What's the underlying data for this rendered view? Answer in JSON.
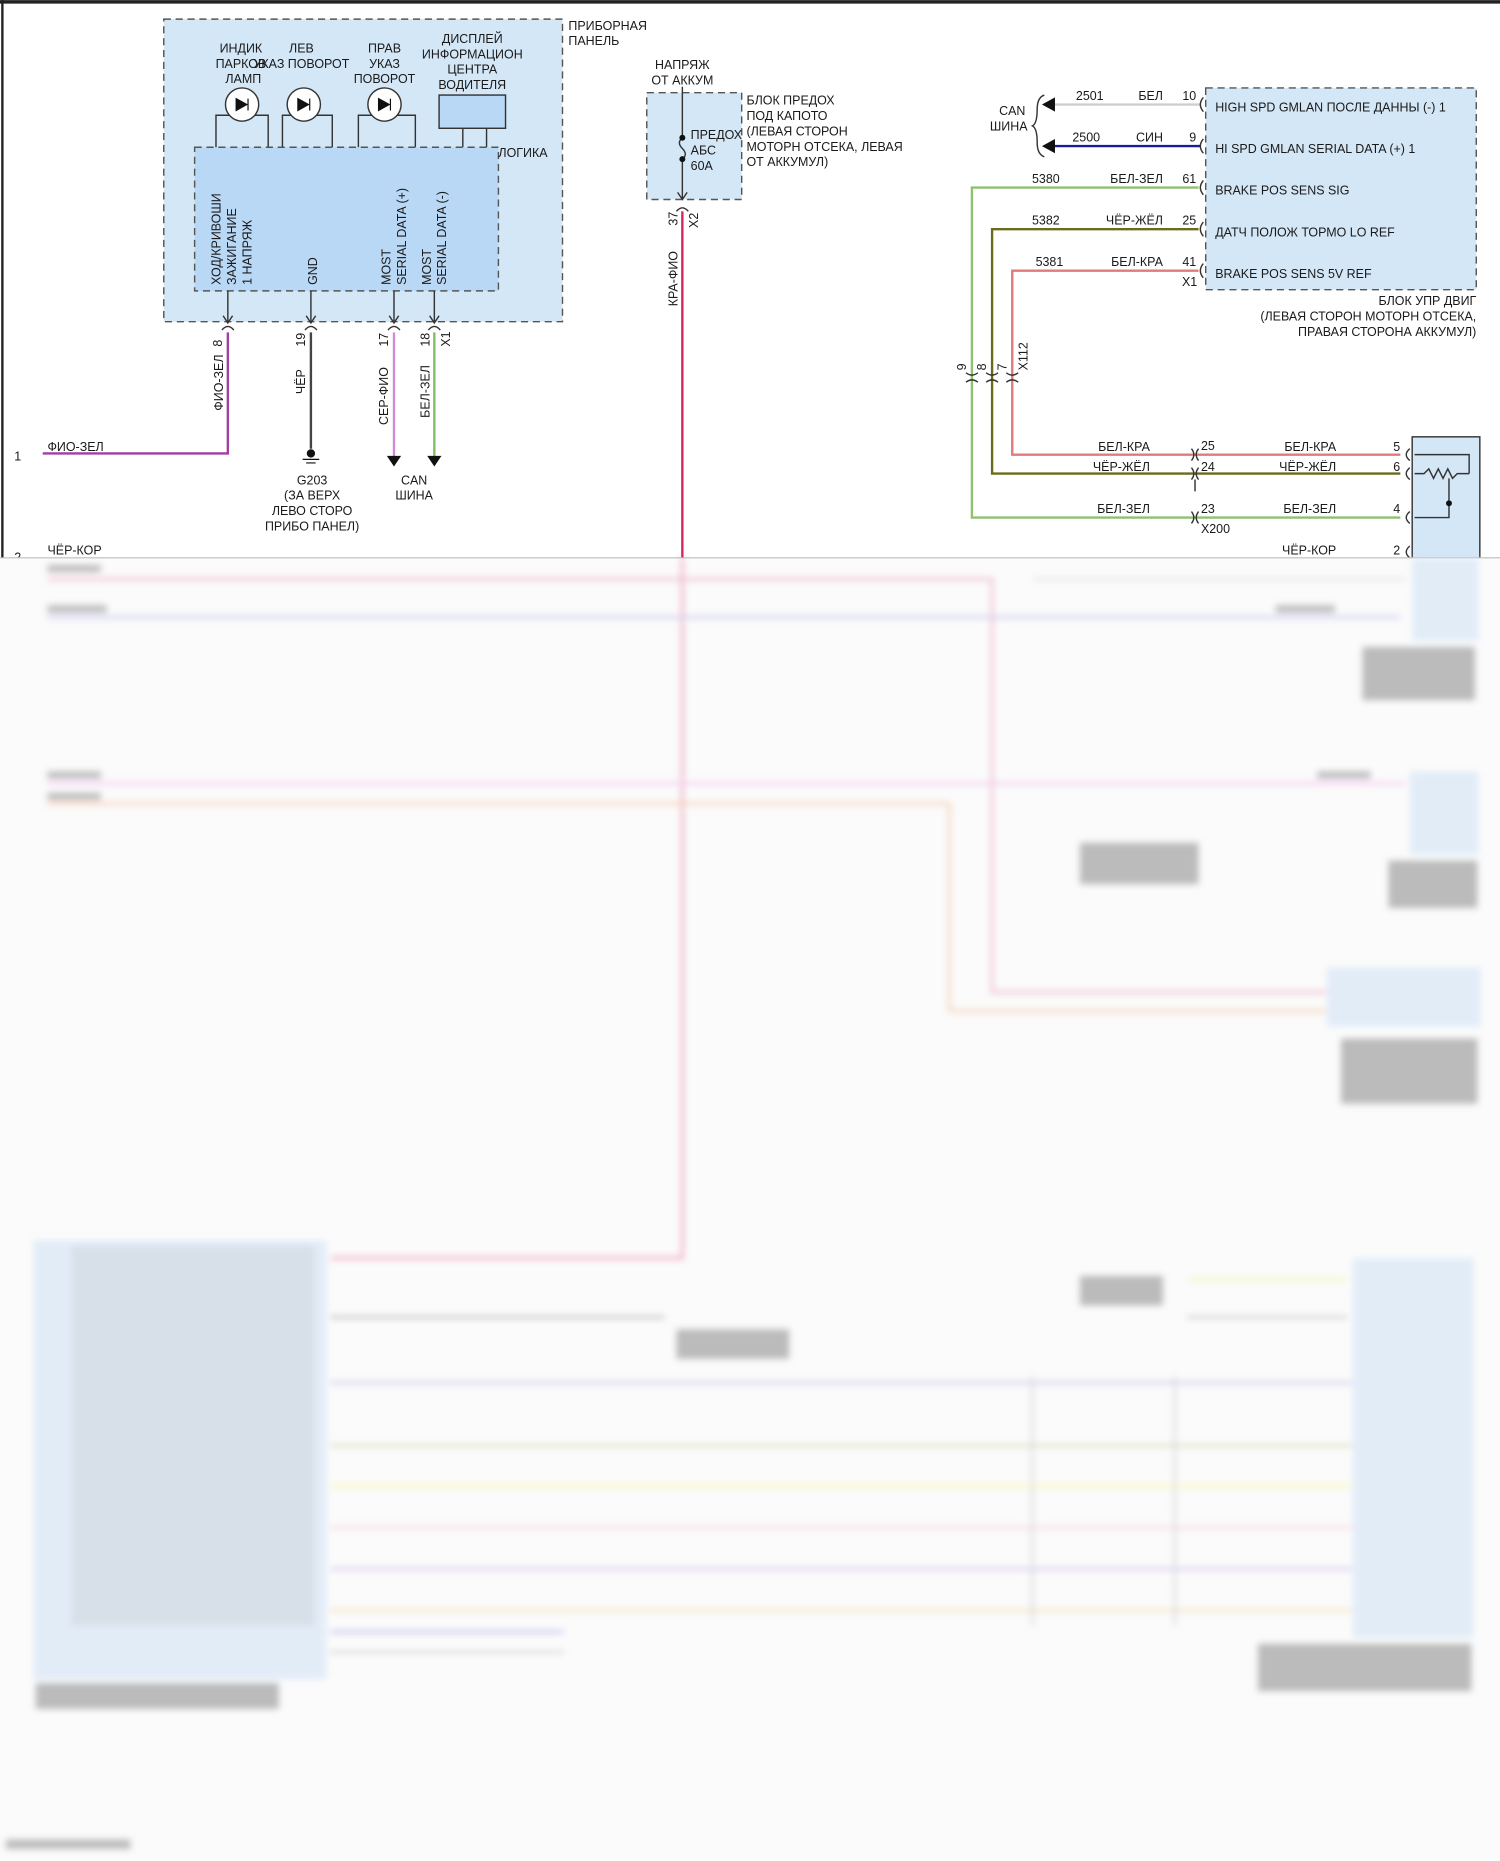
{
  "instrument_panel": {
    "title": [
      "ПРИБОРНАЯ",
      "ПАНЕЛЬ"
    ],
    "lamp_park": [
      "ИНДИК",
      "ПАРКОВ",
      "ЛАМП"
    ],
    "lamp_left": [
      "ЛЕВ",
      "УКАЗ ПОВОРОТ"
    ],
    "lamp_right": [
      "ПРАВ",
      "УКАЗ",
      "ПОВОРОТ"
    ],
    "display": [
      "ДИСПЛЕЙ",
      "ИНФОРМАЦИОН",
      "ЦЕНТРА",
      "ВОДИТЕЛЯ"
    ],
    "logic": "ЛОГИКА",
    "pins": [
      {
        "label": [
          "ХОД/КРИВОШИ",
          "ЗАЖИГАНИЕ",
          "1 НАПРЯЖ"
        ],
        "num": "8",
        "wire": "ФИО-ЗЕЛ"
      },
      {
        "label": [
          "GND"
        ],
        "num": "19",
        "wire": "ЧЁР"
      },
      {
        "label": [
          "MOST",
          "SERIAL DATA (+)"
        ],
        "num": "17",
        "wire": "СЕР-ФИО"
      },
      {
        "label": [
          "MOST",
          "SERIAL DATA (-)"
        ],
        "num": "18",
        "wire": "БЕЛ-ЗЕЛ"
      }
    ],
    "connector": "X1",
    "ground": [
      "G203",
      "(ЗА ВЕРХ",
      "ЛЕВО СТОРО",
      "ПРИБО ПАНЕЛ)"
    ],
    "can_bus": [
      "CAN",
      "ШИНА"
    ]
  },
  "left_rows": [
    {
      "num": "1",
      "wire": "ФИО-ЗЕЛ"
    },
    {
      "num": "2",
      "wire": "ЧЁР-КОР"
    }
  ],
  "fuse_block": {
    "supply": [
      "НАПРЯЖ",
      "ОТ АККУМ"
    ],
    "fuse": [
      "ПРЕДОХ",
      "АБС",
      "60А"
    ],
    "title": [
      "БЛОК ПРЕДОХ",
      "ПОД КАПОТО",
      "(ЛЕВАЯ СТОРОН",
      "МОТОРН ОТСЕКА, ЛЕВАЯ",
      "ОТ АККУМУЛ)"
    ],
    "pin": "37",
    "connector": "X2",
    "wire": "КРА-ФИО"
  },
  "ecm": {
    "can_bus": [
      "CAN",
      "ШИНА"
    ],
    "rows": [
      {
        "circuit": "2501",
        "wire": "БЕЛ",
        "pin": "10",
        "label": "HIGH SPD GMLAN ПОСЛЕ ДАННЫ (-) 1",
        "color": "#cfcfcf"
      },
      {
        "circuit": "2500",
        "wire": "СИН",
        "pin": "9",
        "label": "HI SPD GMLAN SERIAL DATA (+) 1",
        "color": "#1a1a9a"
      },
      {
        "circuit": "5380",
        "wire": "БЕЛ-ЗЕЛ",
        "pin": "61",
        "label": "BRAKE POS SENS SIG",
        "color": "#8fc070"
      },
      {
        "circuit": "5382",
        "wire": "ЧЁР-ЖЁЛ",
        "pin": "25",
        "label": "ДАТЧ ПОЛОЖ ТОРМО LO REF",
        "color": "#6b6b1e"
      },
      {
        "circuit": "5381",
        "wire": "БЕЛ-КРА",
        "pin": "41",
        "label": "BRAKE POS SENS 5V REF",
        "color": "#e07a7a"
      }
    ],
    "connector": "X1",
    "title": [
      "БЛОК УПР ДВИГ",
      "(ЛЕВАЯ СТОРОН МОТОРН ОТСЕКА,",
      "ПРАВАЯ СТОРОНА АККУМУЛ)"
    ]
  },
  "x112": {
    "pins": [
      "9",
      "8",
      "7"
    ],
    "name": "X112"
  },
  "x200": {
    "name": "X200",
    "rows": [
      {
        "left_wire": "БЕЛ-КРА",
        "pin": "25",
        "right_wire": "БЕЛ-КРА",
        "sensor_pin": "5"
      },
      {
        "left_wire": "ЧЁР-ЖЁЛ",
        "pin": "24",
        "right_wire": "ЧЁР-ЖЁЛ",
        "sensor_pin": "6"
      },
      {
        "left_wire": "БЕЛ-ЗЕЛ",
        "pin": "23",
        "right_wire": "БЕЛ-ЗЕЛ",
        "sensor_pin": "4"
      },
      {
        "right_wire": "ЧЁР-КОР",
        "sensor_pin": "2"
      }
    ]
  },
  "colors": {
    "module_fill": "#d4e7f7",
    "logic_fill": "#b9d8f5",
    "wire_violet_green": "#a33ca3",
    "wire_red_violet": "#d4245e",
    "wire_gray_violet": "#d58ad5",
    "wire_white_green": "#7fbf5f"
  }
}
